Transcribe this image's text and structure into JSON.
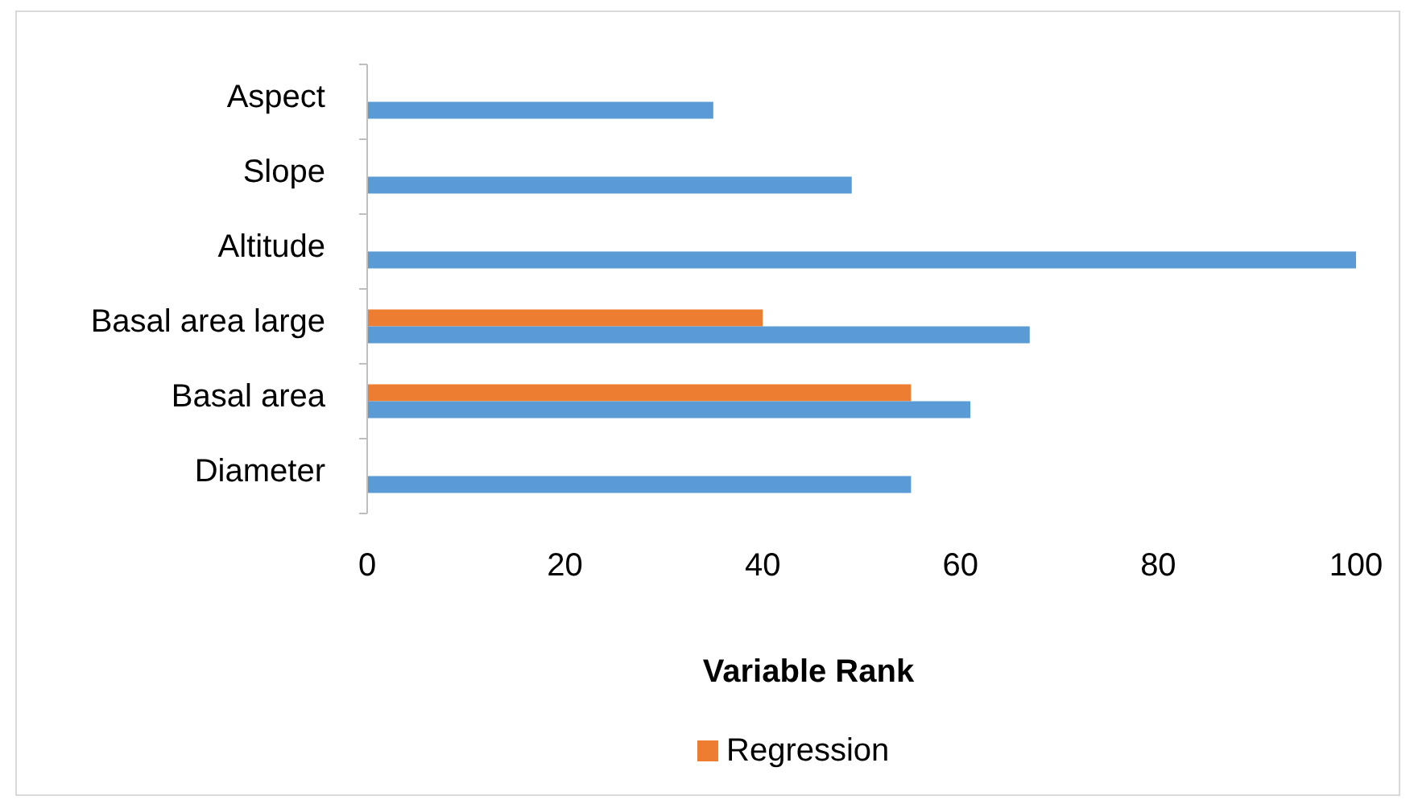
{
  "chart_data": {
    "type": "bar",
    "orientation": "horizontal",
    "categories": [
      "Aspect",
      "Slope",
      "Altitude",
      "Basal area large",
      "Basal area",
      "Diameter"
    ],
    "series": [
      {
        "name": "Regression",
        "color": "#ed7d31",
        "values": [
          null,
          null,
          null,
          40,
          55,
          null
        ]
      },
      {
        "color": "#5b9bd5",
        "values": [
          35,
          49,
          100,
          67,
          61,
          55
        ]
      }
    ],
    "xlabel": "Variable Rank",
    "xlim": [
      0,
      100
    ],
    "xticks": [
      0,
      20,
      40,
      60,
      80,
      100
    ],
    "grid": false,
    "legend": "bottom"
  }
}
